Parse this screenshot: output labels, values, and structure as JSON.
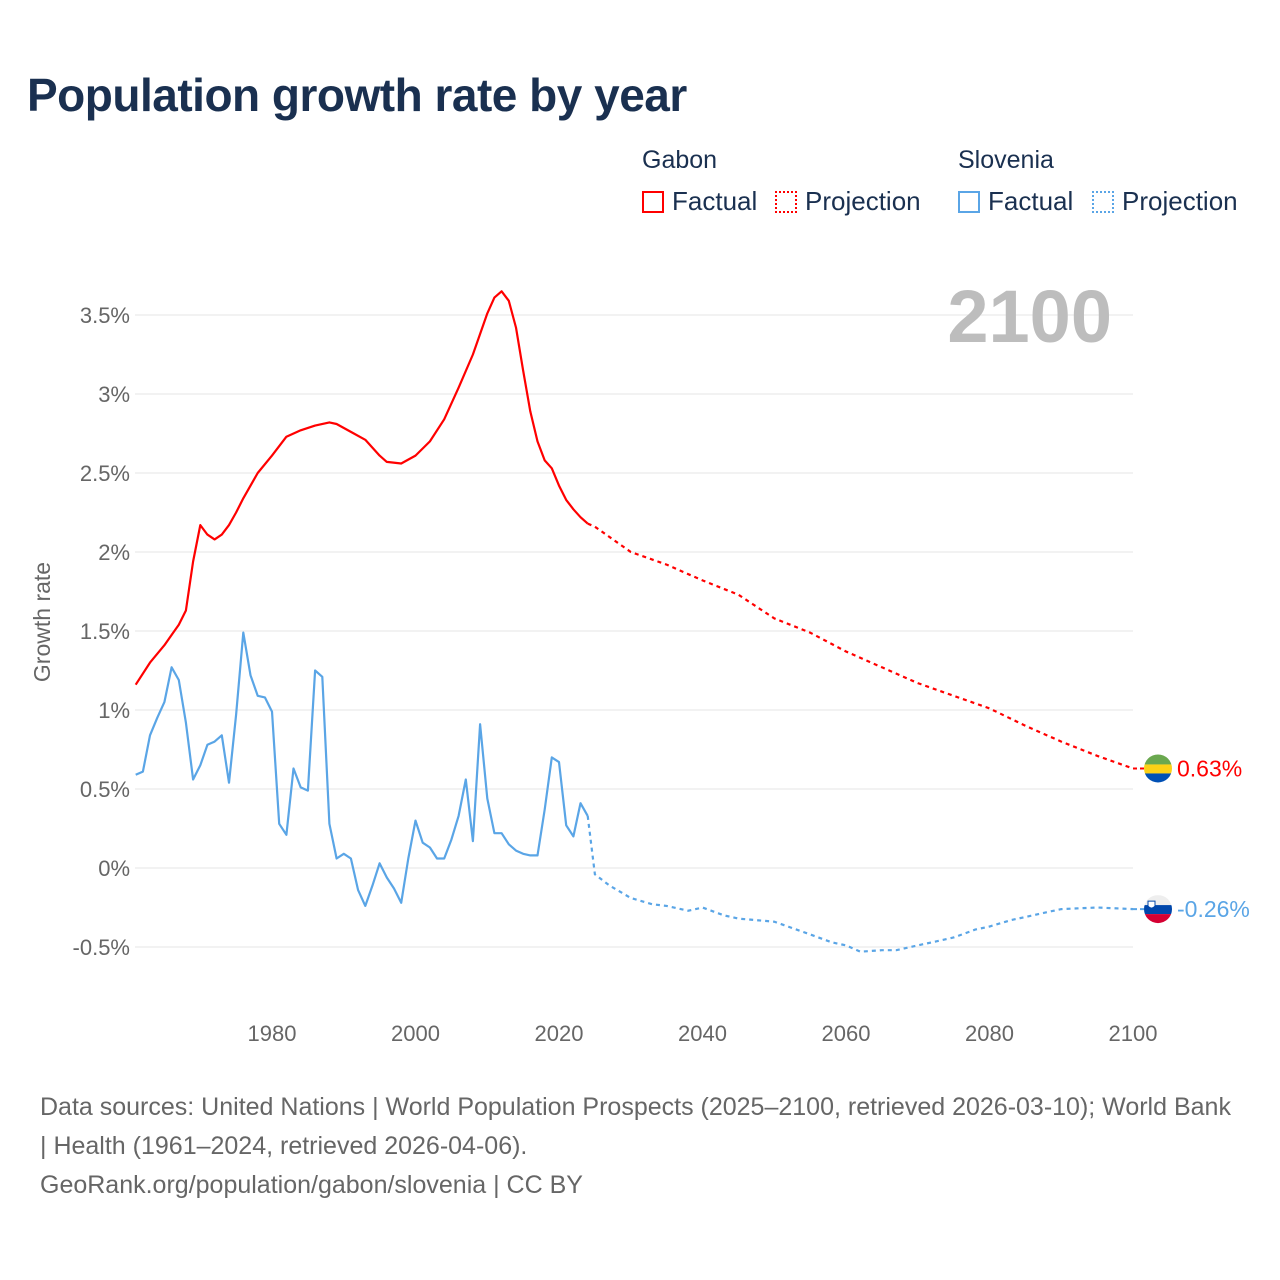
{
  "title": "Population growth rate by year",
  "legend": {
    "groups": [
      {
        "name": "Gabon",
        "factual": "Factual",
        "projection": "Projection",
        "color": "#ff0000"
      },
      {
        "name": "Slovenia",
        "factual": "Factual",
        "projection": "Projection",
        "color": "#5aa5e6"
      }
    ]
  },
  "year_display": "2100",
  "footer": {
    "sources": "Data sources: United Nations | World Population Prospects (2025–2100, retrieved 2026-03-10); World Bank | Health (1961–2024, retrieved 2026-04-06).",
    "attribution": "GeoRank.org/population/gabon/slovenia | CC BY"
  },
  "chart_data": {
    "type": "line",
    "title": "Population growth rate by year",
    "xlabel": "",
    "ylabel": "Growth rate",
    "xlim": [
      1961,
      2100
    ],
    "ylim": [
      -0.75,
      3.8
    ],
    "x_ticks": [
      1980,
      2000,
      2020,
      2040,
      2060,
      2080,
      2100
    ],
    "y_ticks": [
      -0.5,
      0,
      0.5,
      1,
      1.5,
      2,
      2.5,
      3,
      3.5
    ],
    "y_tick_labels": [
      "-0.5%",
      "0%",
      "0.5%",
      "1%",
      "1.5%",
      "2%",
      "2.5%",
      "3%",
      "3.5%"
    ],
    "grid": true,
    "legend_position": "top-right",
    "series": [
      {
        "name": "Gabon",
        "color": "#ff0000",
        "end_label": "0.63%",
        "factual": [
          [
            1961,
            1.16
          ],
          [
            1963,
            1.3
          ],
          [
            1965,
            1.41
          ],
          [
            1967,
            1.54
          ],
          [
            1968,
            1.63
          ],
          [
            1969,
            1.94
          ],
          [
            1970,
            2.17
          ],
          [
            1971,
            2.11
          ],
          [
            1972,
            2.08
          ],
          [
            1973,
            2.11
          ],
          [
            1974,
            2.17
          ],
          [
            1975,
            2.25
          ],
          [
            1976,
            2.34
          ],
          [
            1978,
            2.5
          ],
          [
            1980,
            2.61
          ],
          [
            1982,
            2.73
          ],
          [
            1984,
            2.77
          ],
          [
            1986,
            2.8
          ],
          [
            1988,
            2.82
          ],
          [
            1989,
            2.81
          ],
          [
            1991,
            2.76
          ],
          [
            1993,
            2.71
          ],
          [
            1995,
            2.61
          ],
          [
            1996,
            2.57
          ],
          [
            1998,
            2.56
          ],
          [
            2000,
            2.61
          ],
          [
            2002,
            2.7
          ],
          [
            2004,
            2.84
          ],
          [
            2006,
            3.04
          ],
          [
            2008,
            3.25
          ],
          [
            2010,
            3.51
          ],
          [
            2011,
            3.61
          ],
          [
            2012,
            3.65
          ],
          [
            2013,
            3.59
          ],
          [
            2014,
            3.42
          ],
          [
            2015,
            3.15
          ],
          [
            2016,
            2.89
          ],
          [
            2017,
            2.7
          ],
          [
            2018,
            2.58
          ],
          [
            2019,
            2.53
          ],
          [
            2020,
            2.42
          ],
          [
            2021,
            2.33
          ],
          [
            2022,
            2.27
          ],
          [
            2023,
            2.22
          ],
          [
            2024,
            2.18
          ]
        ],
        "projection": [
          [
            2024,
            2.18
          ],
          [
            2025,
            2.16
          ],
          [
            2030,
            2.0
          ],
          [
            2035,
            1.92
          ],
          [
            2040,
            1.82
          ],
          [
            2045,
            1.73
          ],
          [
            2050,
            1.58
          ],
          [
            2055,
            1.49
          ],
          [
            2060,
            1.37
          ],
          [
            2065,
            1.27
          ],
          [
            2070,
            1.17
          ],
          [
            2075,
            1.09
          ],
          [
            2080,
            1.01
          ],
          [
            2085,
            0.9
          ],
          [
            2090,
            0.8
          ],
          [
            2095,
            0.71
          ],
          [
            2100,
            0.63
          ]
        ]
      },
      {
        "name": "Slovenia",
        "color": "#5aa5e6",
        "end_label": "-0.26%",
        "factual": [
          [
            1961,
            0.59
          ],
          [
            1962,
            0.61
          ],
          [
            1963,
            0.84
          ],
          [
            1964,
            0.95
          ],
          [
            1965,
            1.05
          ],
          [
            1966,
            1.27
          ],
          [
            1967,
            1.19
          ],
          [
            1968,
            0.92
          ],
          [
            1969,
            0.56
          ],
          [
            1970,
            0.65
          ],
          [
            1971,
            0.78
          ],
          [
            1972,
            0.8
          ],
          [
            1973,
            0.84
          ],
          [
            1974,
            0.54
          ],
          [
            1975,
            0.97
          ],
          [
            1976,
            1.49
          ],
          [
            1977,
            1.22
          ],
          [
            1978,
            1.09
          ],
          [
            1979,
            1.08
          ],
          [
            1980,
            0.99
          ],
          [
            1981,
            0.28
          ],
          [
            1982,
            0.21
          ],
          [
            1983,
            0.63
          ],
          [
            1984,
            0.51
          ],
          [
            1985,
            0.49
          ],
          [
            1986,
            1.25
          ],
          [
            1987,
            1.21
          ],
          [
            1988,
            0.28
          ],
          [
            1989,
            0.06
          ],
          [
            1990,
            0.09
          ],
          [
            1991,
            0.06
          ],
          [
            1992,
            -0.14
          ],
          [
            1993,
            -0.24
          ],
          [
            1994,
            -0.11
          ],
          [
            1995,
            0.03
          ],
          [
            1996,
            -0.06
          ],
          [
            1997,
            -0.13
          ],
          [
            1998,
            -0.22
          ],
          [
            1999,
            0.06
          ],
          [
            2000,
            0.3
          ],
          [
            2001,
            0.16
          ],
          [
            2002,
            0.13
          ],
          [
            2003,
            0.06
          ],
          [
            2004,
            0.06
          ],
          [
            2005,
            0.18
          ],
          [
            2006,
            0.33
          ],
          [
            2007,
            0.56
          ],
          [
            2008,
            0.17
          ],
          [
            2009,
            0.91
          ],
          [
            2010,
            0.44
          ],
          [
            2011,
            0.22
          ],
          [
            2012,
            0.22
          ],
          [
            2013,
            0.15
          ],
          [
            2014,
            0.11
          ],
          [
            2015,
            0.09
          ],
          [
            2016,
            0.08
          ],
          [
            2017,
            0.08
          ],
          [
            2018,
            0.37
          ],
          [
            2019,
            0.7
          ],
          [
            2020,
            0.67
          ],
          [
            2021,
            0.27
          ],
          [
            2022,
            0.2
          ],
          [
            2023,
            0.41
          ],
          [
            2024,
            0.33
          ]
        ],
        "projection": [
          [
            2024,
            0.33
          ],
          [
            2025,
            -0.04
          ],
          [
            2027,
            -0.11
          ],
          [
            2030,
            -0.19
          ],
          [
            2033,
            -0.23
          ],
          [
            2035,
            -0.24
          ],
          [
            2038,
            -0.27
          ],
          [
            2040,
            -0.25
          ],
          [
            2043,
            -0.3
          ],
          [
            2045,
            -0.32
          ],
          [
            2050,
            -0.34
          ],
          [
            2055,
            -0.42
          ],
          [
            2058,
            -0.47
          ],
          [
            2060,
            -0.49
          ],
          [
            2062,
            -0.53
          ],
          [
            2065,
            -0.52
          ],
          [
            2067,
            -0.52
          ],
          [
            2070,
            -0.49
          ],
          [
            2073,
            -0.46
          ],
          [
            2075,
            -0.44
          ],
          [
            2078,
            -0.39
          ],
          [
            2080,
            -0.37
          ],
          [
            2083,
            -0.33
          ],
          [
            2086,
            -0.3
          ],
          [
            2088,
            -0.28
          ],
          [
            2090,
            -0.26
          ],
          [
            2095,
            -0.25
          ],
          [
            2100,
            -0.26
          ]
        ]
      }
    ]
  }
}
